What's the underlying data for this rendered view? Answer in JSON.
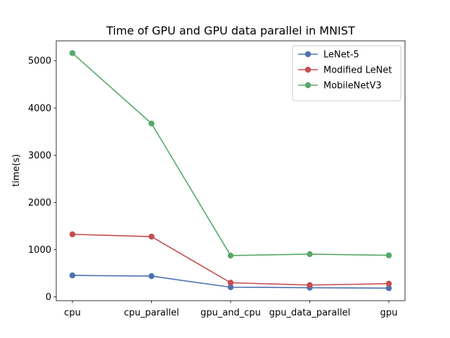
{
  "chart_data": {
    "type": "line",
    "title": "Time of GPU and GPU data parallel in MNIST",
    "xlabel": "",
    "ylabel": "time(s)",
    "categories": [
      "cpu",
      "cpu_parallel",
      "gpu_and_cpu",
      "gpu_data_parallel",
      "gpu"
    ],
    "ylim": [
      -80,
      5420
    ],
    "yticks": [
      0,
      1000,
      2000,
      3000,
      4000,
      5000
    ],
    "ytick_labels": [
      "0",
      "1000",
      "2000",
      "3000",
      "4000",
      "5000"
    ],
    "grid": false,
    "legend_position": "upper right",
    "series": [
      {
        "name": "LeNet-5",
        "color": "#4c72b0",
        "values": [
          455,
          440,
          205,
          195,
          185
        ]
      },
      {
        "name": "Modified LeNet",
        "color": "#c44e52",
        "values": [
          1325,
          1275,
          300,
          250,
          280
        ]
      },
      {
        "name": "MobileNetV3",
        "color": "#55a868",
        "values": [
          5160,
          3670,
          875,
          905,
          880
        ]
      }
    ]
  }
}
